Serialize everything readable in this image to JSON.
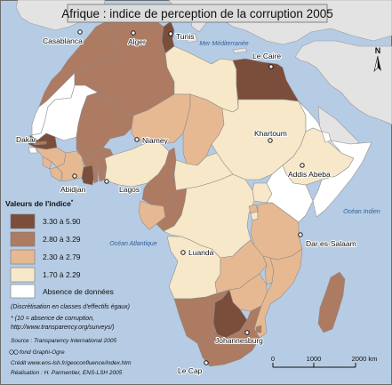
{
  "title": "Afrique : indice de perception de la corruption 2005",
  "colors": {
    "class_1": "#7b4d3b",
    "class_2": "#ad7b62",
    "class_3": "#e6b992",
    "class_4": "#f6e8c8",
    "no_data": "#ffffff",
    "sea": "#b6cce4",
    "outside_land": "#e3e3e3",
    "title_box": "#dcdcdc"
  },
  "seas": {
    "mediterranean": "Mer Méditerranée",
    "indian": "Océan Indien",
    "atlantic": "Océan Atlantique"
  },
  "cities": {
    "casablanca": "Casablanca",
    "alger": "Alger",
    "tunis": "Tunis",
    "le_caire": "Le Caire",
    "dakar": "Dakar",
    "niamey": "Niamey",
    "khartoum": "Khartoum",
    "addis_abeba": "Addis Abeba",
    "abidjan": "Abidjan",
    "lagos": "Lagos",
    "luanda": "Luanda",
    "dar_es_salaam": "Dar es-Salaam",
    "johannesburg": "Johannesburg",
    "le_cap": "Le Cap"
  },
  "legend": {
    "title": "Valeurs de l'indice",
    "title_mark": "*",
    "classes": [
      {
        "label": "3.30 à 5.90",
        "color": "#7b4d3b"
      },
      {
        "label": "2.80 à 3.29",
        "color": "#ad7b62"
      },
      {
        "label": "2.30 à 2.79",
        "color": "#e6b992"
      },
      {
        "label": "1.70 à 2.29",
        "color": "#f6e8c8"
      },
      {
        "label": "Absence de données",
        "color": "#ffffff"
      }
    ]
  },
  "notes": {
    "discretisation": "(Discrétisation en classes d'effectifs égaux)",
    "index_note": "* (10 = absence de corruption,",
    "index_url": "http://www.transparency.org/surveys/)"
  },
  "credits": {
    "source": "Source :  Transparency International 2005",
    "fond": "fond Graphi-Ogre",
    "credit": "Crédit www.ens-lsh.fr/geoconfluence/index.htm",
    "realisation": "Réalisation :  H. Parmentier, ENS-LSH 2005"
  },
  "scale": {
    "ticks": [
      "0",
      "1000",
      "2000 km"
    ]
  },
  "north": "N"
}
